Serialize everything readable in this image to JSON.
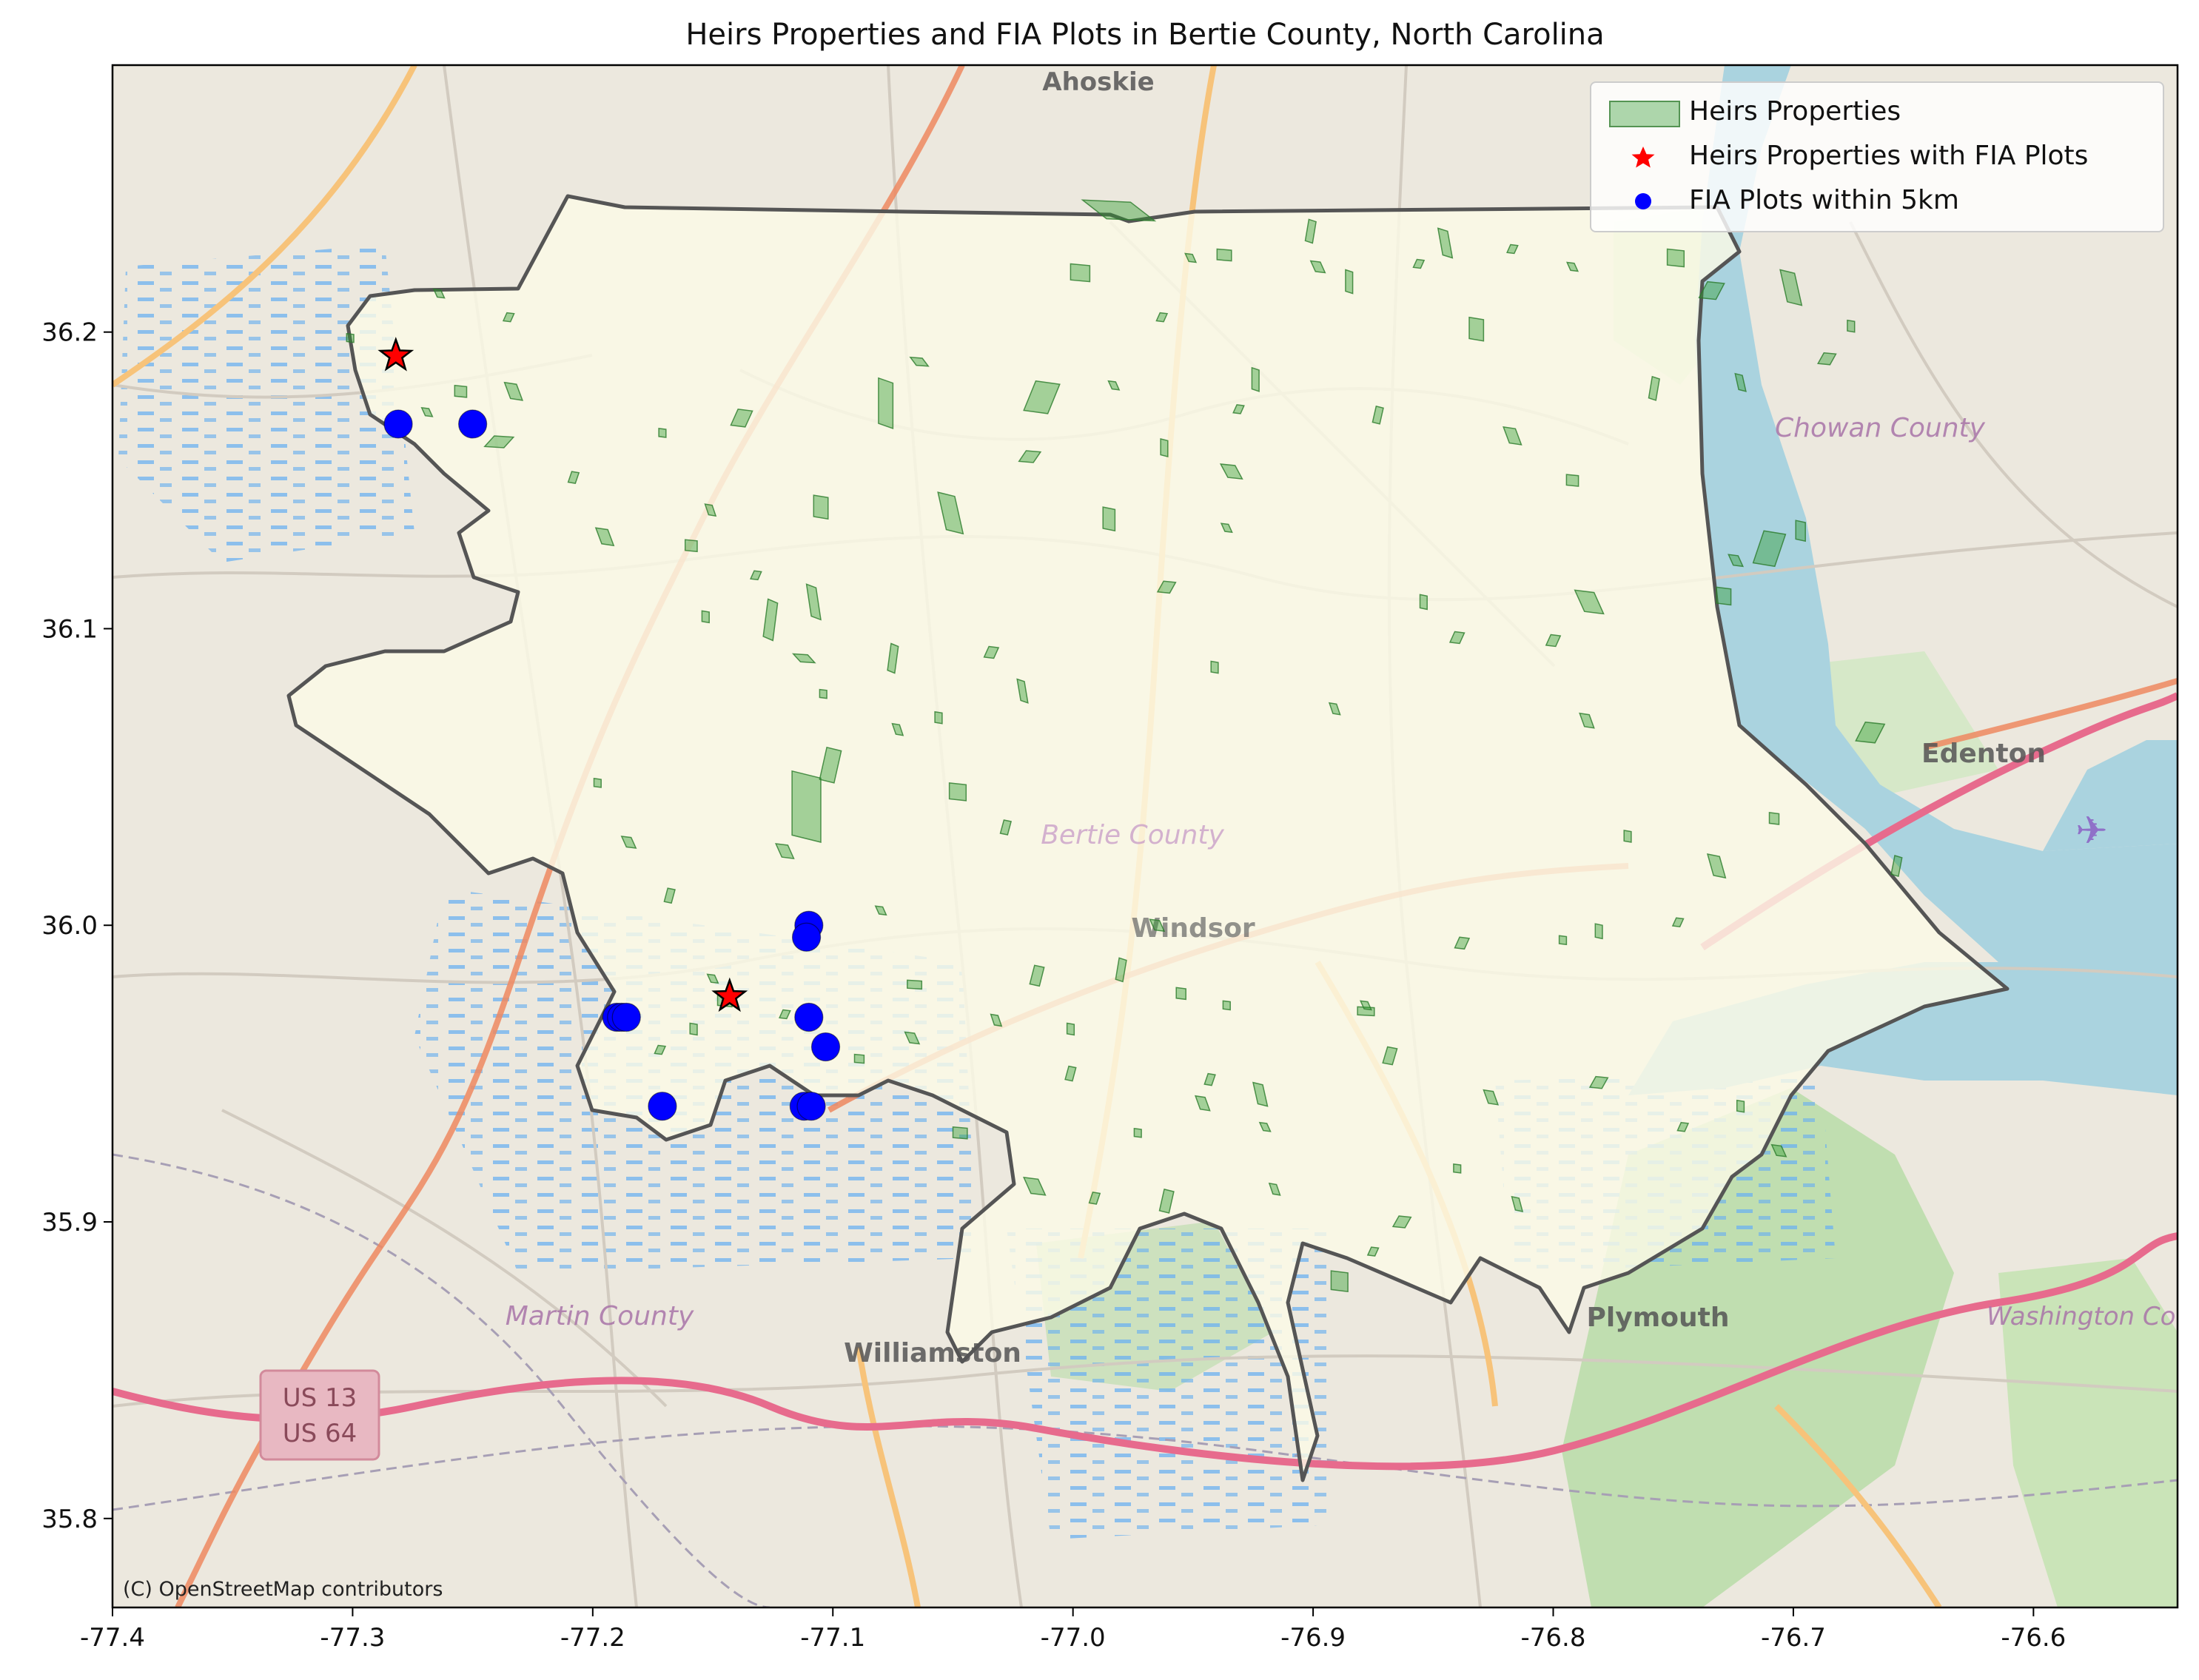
{
  "title": "Heirs Properties and FIA Plots in Bertie County, North Carolina",
  "axes": {
    "x_ticks": [
      "-77.4",
      "-77.3",
      "-77.2",
      "-77.1",
      "-77.0",
      "-76.9",
      "-76.8",
      "-76.7",
      "-76.6"
    ],
    "y_ticks": [
      "35.8",
      "35.9",
      "36.0",
      "36.1",
      "36.2"
    ],
    "xlim": [
      -77.4,
      -76.54
    ],
    "ylim": [
      35.77,
      36.29
    ]
  },
  "legend": {
    "placement": "top-right",
    "items": [
      {
        "label": "Heirs Properties",
        "marker": "patch",
        "color": "#2e9a2e"
      },
      {
        "label": "Heirs Properties with FIA Plots",
        "marker": "star",
        "color": "#ff0000"
      },
      {
        "label": "FIA Plots within 5km",
        "marker": "circle",
        "color": "#0000ff"
      }
    ]
  },
  "basemap_labels": {
    "ahoskie": "Ahoskie",
    "chowan": "Chowan County",
    "edenton": "Edenton",
    "bertie": "Bertie County",
    "windsor": "Windsor",
    "martin": "Martin County",
    "williamston": "Williamston",
    "plymouth": "Plymouth",
    "washington": "Washington County",
    "us13": "US 13",
    "us64": "US 64"
  },
  "attribution": "(C) OpenStreetMap contributors",
  "chart_data": {
    "type": "scatter",
    "title": "Heirs Properties and FIA Plots in Bertie County, North Carolina",
    "xlim": [
      -77.4,
      -76.54
    ],
    "ylim": [
      35.77,
      36.29
    ],
    "grid": false,
    "legend_placement": "top-right",
    "series": [
      {
        "name": "Heirs Properties with FIA Plots",
        "marker": "star",
        "color": "#ff0000",
        "points": [
          [
            -77.282,
            36.192
          ],
          [
            -77.143,
            35.976
          ]
        ]
      },
      {
        "name": "FIA Plots within 5km",
        "marker": "circle",
        "color": "#0000ff",
        "points": [
          [
            -77.281,
            36.169
          ],
          [
            -77.25,
            36.169
          ],
          [
            -77.11,
            36.0
          ],
          [
            -77.111,
            35.996
          ],
          [
            -77.19,
            35.969
          ],
          [
            -77.188,
            35.969
          ],
          [
            -77.186,
            35.969
          ],
          [
            -77.11,
            35.969
          ],
          [
            -77.103,
            35.959
          ],
          [
            -77.171,
            35.939
          ],
          [
            -77.112,
            35.939
          ],
          [
            -77.109,
            35.939
          ]
        ]
      }
    ],
    "heirs_properties_color": "#2e9a2e",
    "heirs_properties": [
      [
        -76.981,
        36.241,
        0.02,
        0.007
      ],
      [
        -76.937,
        36.226,
        0.006,
        0.004
      ],
      [
        -76.901,
        36.234,
        0.003,
        0.008
      ],
      [
        -76.898,
        36.222,
        0.004,
        0.004
      ],
      [
        -76.885,
        36.217,
        0.003,
        0.008
      ],
      [
        -76.856,
        36.223,
        0.003,
        0.003
      ],
      [
        -76.845,
        36.23,
        0.004,
        0.01
      ],
      [
        -76.832,
        36.201,
        0.006,
        0.008
      ],
      [
        -76.817,
        36.228,
        0.003,
        0.003
      ],
      [
        -76.792,
        36.222,
        0.003,
        0.003
      ],
      [
        -76.749,
        36.225,
        0.007,
        0.006
      ],
      [
        -76.734,
        36.214,
        0.007,
        0.006
      ],
      [
        -76.701,
        36.215,
        0.006,
        0.012
      ],
      [
        -76.676,
        36.202,
        0.003,
        0.004
      ],
      [
        -76.686,
        36.191,
        0.005,
        0.004
      ],
      [
        -76.951,
        36.225,
        0.003,
        0.003
      ],
      [
        -76.997,
        36.22,
        0.008,
        0.006
      ],
      [
        -76.963,
        36.205,
        0.003,
        0.003
      ],
      [
        -77.064,
        36.19,
        0.005,
        0.003
      ],
      [
        -77.078,
        36.176,
        0.006,
        0.017
      ],
      [
        -77.013,
        36.178,
        0.01,
        0.011
      ],
      [
        -76.983,
        36.182,
        0.003,
        0.003
      ],
      [
        -76.924,
        36.184,
        0.003,
        0.008
      ],
      [
        -76.873,
        36.172,
        0.003,
        0.006
      ],
      [
        -76.934,
        36.153,
        0.006,
        0.005
      ],
      [
        -76.962,
        36.161,
        0.003,
        0.006
      ],
      [
        -76.931,
        36.174,
        0.003,
        0.003
      ],
      [
        -76.817,
        36.165,
        0.005,
        0.006
      ],
      [
        -76.792,
        36.15,
        0.005,
        0.004
      ],
      [
        -76.758,
        36.181,
        0.003,
        0.008
      ],
      [
        -76.722,
        36.183,
        0.003,
        0.006
      ],
      [
        -76.697,
        36.133,
        0.004,
        0.007
      ],
      [
        -76.71,
        36.127,
        0.009,
        0.012
      ],
      [
        -76.724,
        36.123,
        0.004,
        0.004
      ],
      [
        -76.729,
        36.111,
        0.006,
        0.006
      ],
      [
        -76.8,
        36.096,
        0.004,
        0.004
      ],
      [
        -76.785,
        36.109,
        0.008,
        0.008
      ],
      [
        -76.854,
        36.109,
        0.003,
        0.005
      ],
      [
        -76.84,
        36.097,
        0.004,
        0.004
      ],
      [
        -76.891,
        36.073,
        0.003,
        0.004
      ],
      [
        -76.941,
        36.087,
        0.003,
        0.004
      ],
      [
        -76.961,
        36.114,
        0.005,
        0.004
      ],
      [
        -76.936,
        36.134,
        0.003,
        0.003
      ],
      [
        -76.985,
        36.137,
        0.005,
        0.008
      ],
      [
        -77.018,
        36.158,
        0.006,
        0.004
      ],
      [
        -77.051,
        36.139,
        0.007,
        0.014
      ],
      [
        -77.105,
        36.141,
        0.006,
        0.008
      ],
      [
        -77.138,
        36.171,
        0.006,
        0.006
      ],
      [
        -77.151,
        36.14,
        0.003,
        0.004
      ],
      [
        -77.159,
        36.128,
        0.005,
        0.004
      ],
      [
        -77.126,
        36.103,
        0.004,
        0.014
      ],
      [
        -77.108,
        36.109,
        0.004,
        0.012
      ],
      [
        -77.153,
        36.104,
        0.003,
        0.004
      ],
      [
        -77.132,
        36.118,
        0.003,
        0.003
      ],
      [
        -77.112,
        36.09,
        0.006,
        0.003
      ],
      [
        -77.104,
        36.078,
        0.003,
        0.003
      ],
      [
        -77.075,
        36.09,
        0.003,
        0.01
      ],
      [
        -77.073,
        36.066,
        0.003,
        0.004
      ],
      [
        -77.056,
        36.07,
        0.003,
        0.004
      ],
      [
        -77.034,
        36.092,
        0.004,
        0.004
      ],
      [
        -77.021,
        36.079,
        0.003,
        0.008
      ],
      [
        -77.111,
        36.04,
        0.012,
        0.024
      ],
      [
        -77.101,
        36.054,
        0.006,
        0.012
      ],
      [
        -77.12,
        36.025,
        0.005,
        0.005
      ],
      [
        -77.048,
        36.045,
        0.007,
        0.006
      ],
      [
        -77.028,
        36.033,
        0.003,
        0.005
      ],
      [
        -77.08,
        36.005,
        0.003,
        0.003
      ],
      [
        -77.066,
        35.98,
        0.006,
        0.003
      ],
      [
        -77.015,
        35.983,
        0.004,
        0.007
      ],
      [
        -77.032,
        35.968,
        0.003,
        0.004
      ],
      [
        -77.001,
        35.965,
        0.003,
        0.004
      ],
      [
        -76.98,
        35.985,
        0.003,
        0.008
      ],
      [
        -76.965,
        36.0,
        0.004,
        0.004
      ],
      [
        -76.955,
        35.977,
        0.004,
        0.004
      ],
      [
        -76.943,
        35.948,
        0.003,
        0.004
      ],
      [
        -76.922,
        35.943,
        0.004,
        0.008
      ],
      [
        -76.878,
        35.971,
        0.007,
        0.003
      ],
      [
        -76.868,
        35.956,
        0.004,
        0.006
      ],
      [
        -76.826,
        35.942,
        0.004,
        0.005
      ],
      [
        -76.781,
        35.998,
        0.003,
        0.005
      ],
      [
        -76.748,
        36.001,
        0.003,
        0.003
      ],
      [
        -76.732,
        36.02,
        0.005,
        0.008
      ],
      [
        -76.708,
        36.036,
        0.004,
        0.004
      ],
      [
        -76.657,
        36.02,
        0.003,
        0.007
      ],
      [
        -76.786,
        36.069,
        0.004,
        0.005
      ],
      [
        -76.769,
        36.03,
        0.003,
        0.004
      ],
      [
        -76.668,
        36.065,
        0.008,
        0.007
      ],
      [
        -76.706,
        35.924,
        0.004,
        0.004
      ],
      [
        -76.722,
        35.939,
        0.003,
        0.004
      ],
      [
        -76.781,
        35.947,
        0.005,
        0.004
      ],
      [
        -76.815,
        35.906,
        0.003,
        0.005
      ],
      [
        -76.84,
        35.918,
        0.003,
        0.003
      ],
      [
        -76.875,
        35.89,
        0.003,
        0.003
      ],
      [
        -76.92,
        35.932,
        0.003,
        0.003
      ],
      [
        -76.973,
        35.93,
        0.003,
        0.003
      ],
      [
        -76.991,
        35.908,
        0.003,
        0.004
      ],
      [
        -77.016,
        35.912,
        0.006,
        0.006
      ],
      [
        -77.047,
        35.93,
        0.006,
        0.004
      ],
      [
        -77.001,
        35.95,
        0.003,
        0.005
      ],
      [
        -77.067,
        35.962,
        0.004,
        0.004
      ],
      [
        -77.089,
        35.955,
        0.004,
        0.003
      ],
      [
        -77.12,
        35.97,
        0.003,
        0.003
      ],
      [
        -77.15,
        35.982,
        0.003,
        0.003
      ],
      [
        -77.158,
        35.965,
        0.003,
        0.004
      ],
      [
        -77.172,
        35.958,
        0.003,
        0.003
      ],
      [
        -77.185,
        36.028,
        0.004,
        0.004
      ],
      [
        -77.198,
        36.048,
        0.003,
        0.003
      ],
      [
        -77.168,
        36.01,
        0.003,
        0.005
      ],
      [
        -77.195,
        36.131,
        0.005,
        0.006
      ],
      [
        -77.171,
        36.166,
        0.003,
        0.003
      ],
      [
        -77.208,
        36.151,
        0.003,
        0.004
      ],
      [
        -77.233,
        36.18,
        0.005,
        0.006
      ],
      [
        -77.255,
        36.18,
        0.005,
        0.004
      ],
      [
        -77.239,
        36.163,
        0.008,
        0.004
      ],
      [
        -77.269,
        36.173,
        0.003,
        0.003
      ],
      [
        -77.301,
        36.198,
        0.003,
        0.003
      ],
      [
        -77.235,
        36.205,
        0.003,
        0.003
      ],
      [
        -77.264,
        36.213,
        0.003,
        0.003
      ],
      [
        -77.145,
        35.975,
        0.006,
        0.005
      ],
      [
        -76.961,
        35.907,
        0.004,
        0.008
      ],
      [
        -76.916,
        35.911,
        0.003,
        0.004
      ],
      [
        -76.889,
        35.88,
        0.007,
        0.007
      ],
      [
        -76.863,
        35.9,
        0.005,
        0.004
      ],
      [
        -76.946,
        35.94,
        0.004,
        0.005
      ],
      [
        -76.936,
        35.973,
        0.003,
        0.003
      ],
      [
        -76.838,
        35.994,
        0.004,
        0.004
      ],
      [
        -76.878,
        35.973,
        0.003,
        0.003
      ],
      [
        -76.796,
        35.995,
        0.003,
        0.003
      ],
      [
        -76.746,
        35.932,
        0.003,
        0.003
      ]
    ]
  }
}
